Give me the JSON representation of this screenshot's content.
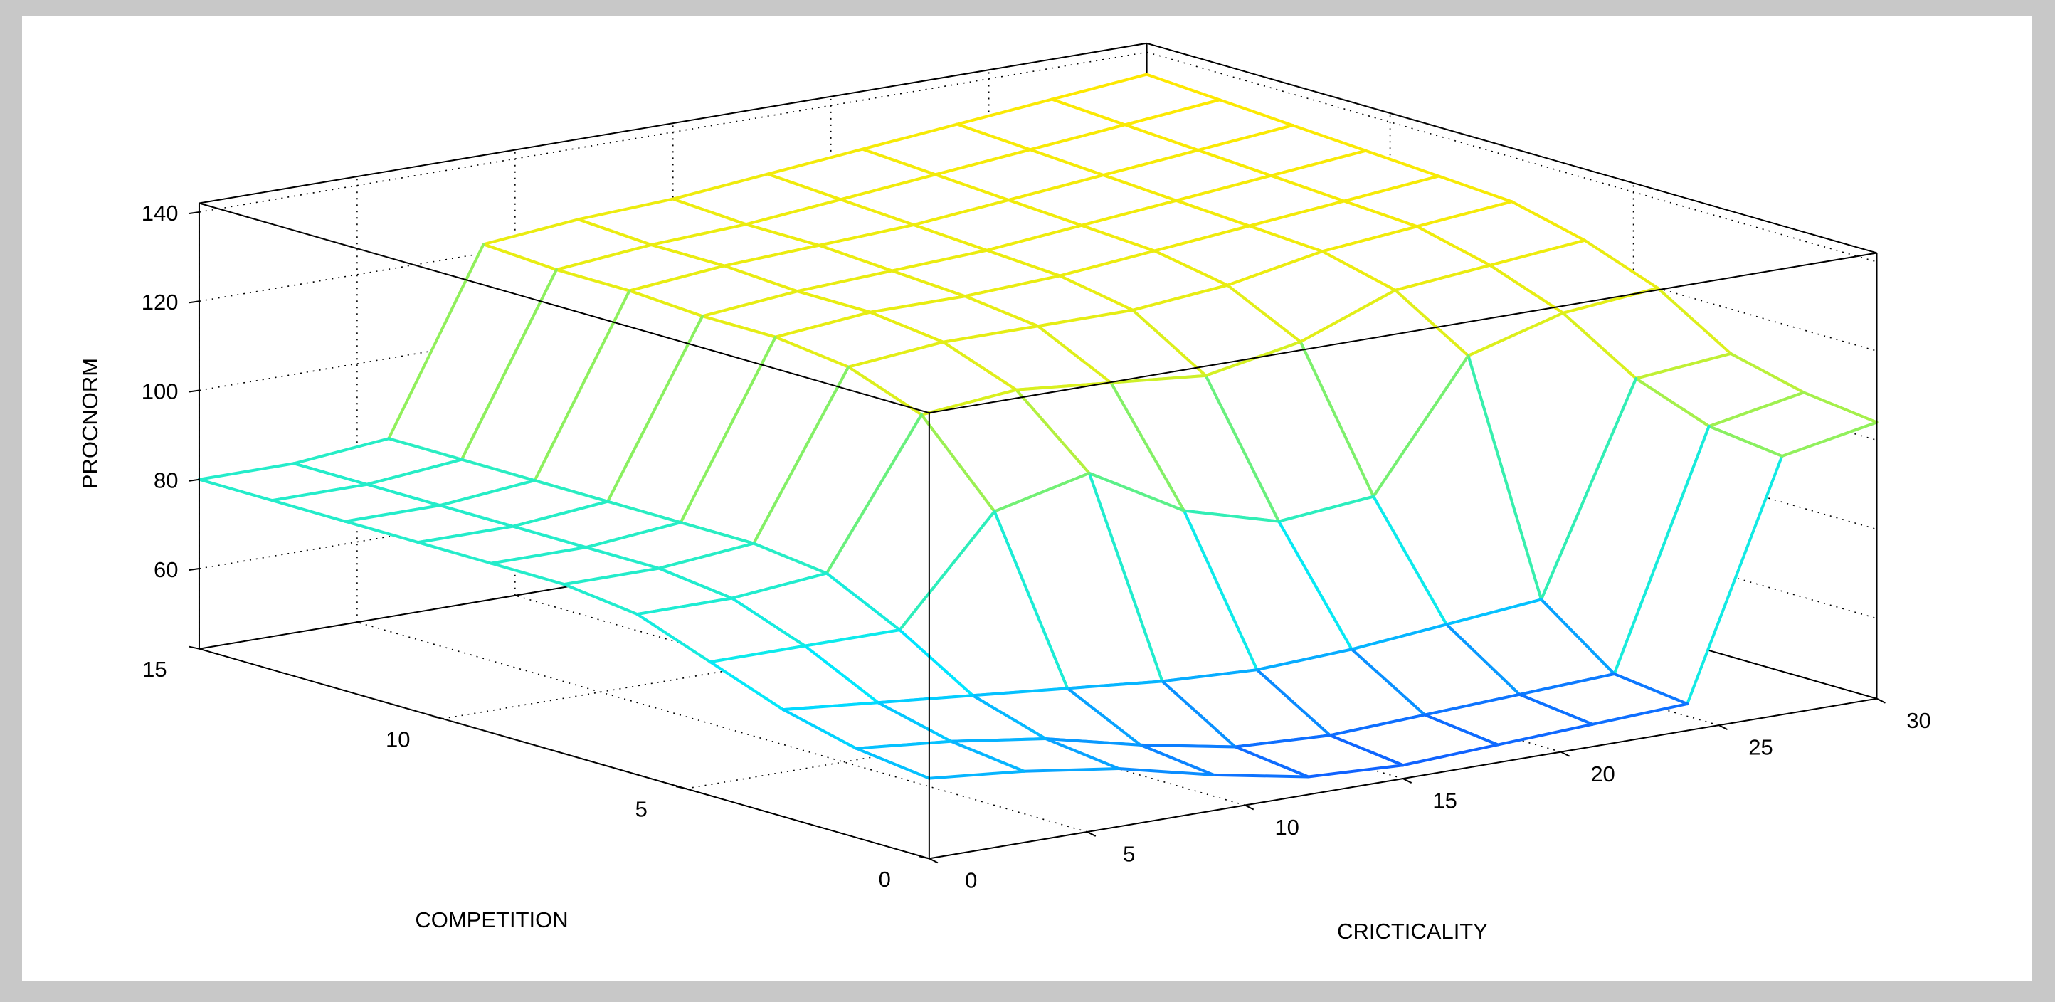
{
  "chart_data": {
    "type": "mesh",
    "xlabel": "CRICTICALITY",
    "ylabel": "COMPETITION",
    "zlabel": "PROCNORM",
    "x": [
      0,
      3,
      6,
      9,
      12,
      15,
      18,
      21,
      24,
      27,
      30
    ],
    "y": [
      0,
      1.5,
      3,
      4.5,
      6,
      7.5,
      9,
      10.5,
      12,
      13.5,
      15
    ],
    "z": [
      [
        60,
        58,
        55,
        50,
        46,
        45,
        46,
        47,
        48,
        100,
        104
      ],
      [
        62,
        60,
        57,
        52,
        48,
        47,
        48,
        49,
        50,
        102,
        106
      ],
      [
        66,
        64,
        62,
        60,
        58,
        57,
        58,
        60,
        62,
        108,
        110
      ],
      [
        72,
        72,
        72,
        95,
        100,
        88,
        82,
        84,
        112,
        118,
        120
      ],
      [
        78,
        78,
        80,
        112,
        114,
        112,
        110,
        114,
        122,
        124,
        126
      ],
      [
        80,
        80,
        82,
        118,
        120,
        120,
        120,
        122,
        126,
        128,
        130
      ],
      [
        80,
        80,
        82,
        120,
        122,
        122,
        123,
        125,
        127,
        129,
        131
      ],
      [
        80,
        80,
        82,
        120,
        122,
        123,
        124,
        126,
        128,
        130,
        132
      ],
      [
        80,
        80,
        82,
        121,
        123,
        124,
        125,
        127,
        129,
        131,
        133
      ],
      [
        80,
        80,
        82,
        121,
        123,
        124,
        126,
        128,
        130,
        132,
        134
      ],
      [
        80,
        80,
        82,
        122,
        124,
        125,
        127,
        129,
        131,
        133,
        135
      ]
    ],
    "xlim": [
      0,
      30
    ],
    "ylim": [
      0,
      15
    ],
    "zlim": [
      42,
      142
    ],
    "xticks": [
      0,
      5,
      10,
      15,
      20,
      25,
      30
    ],
    "yticks": [
      0,
      5,
      10,
      15
    ],
    "zticks": [
      60,
      80,
      100,
      120,
      140
    ],
    "grid": true,
    "box": true,
    "colormap": [
      "#1060ff",
      "#00e8ff",
      "#40f0a0",
      "#d8f020",
      "#ffe800"
    ]
  }
}
